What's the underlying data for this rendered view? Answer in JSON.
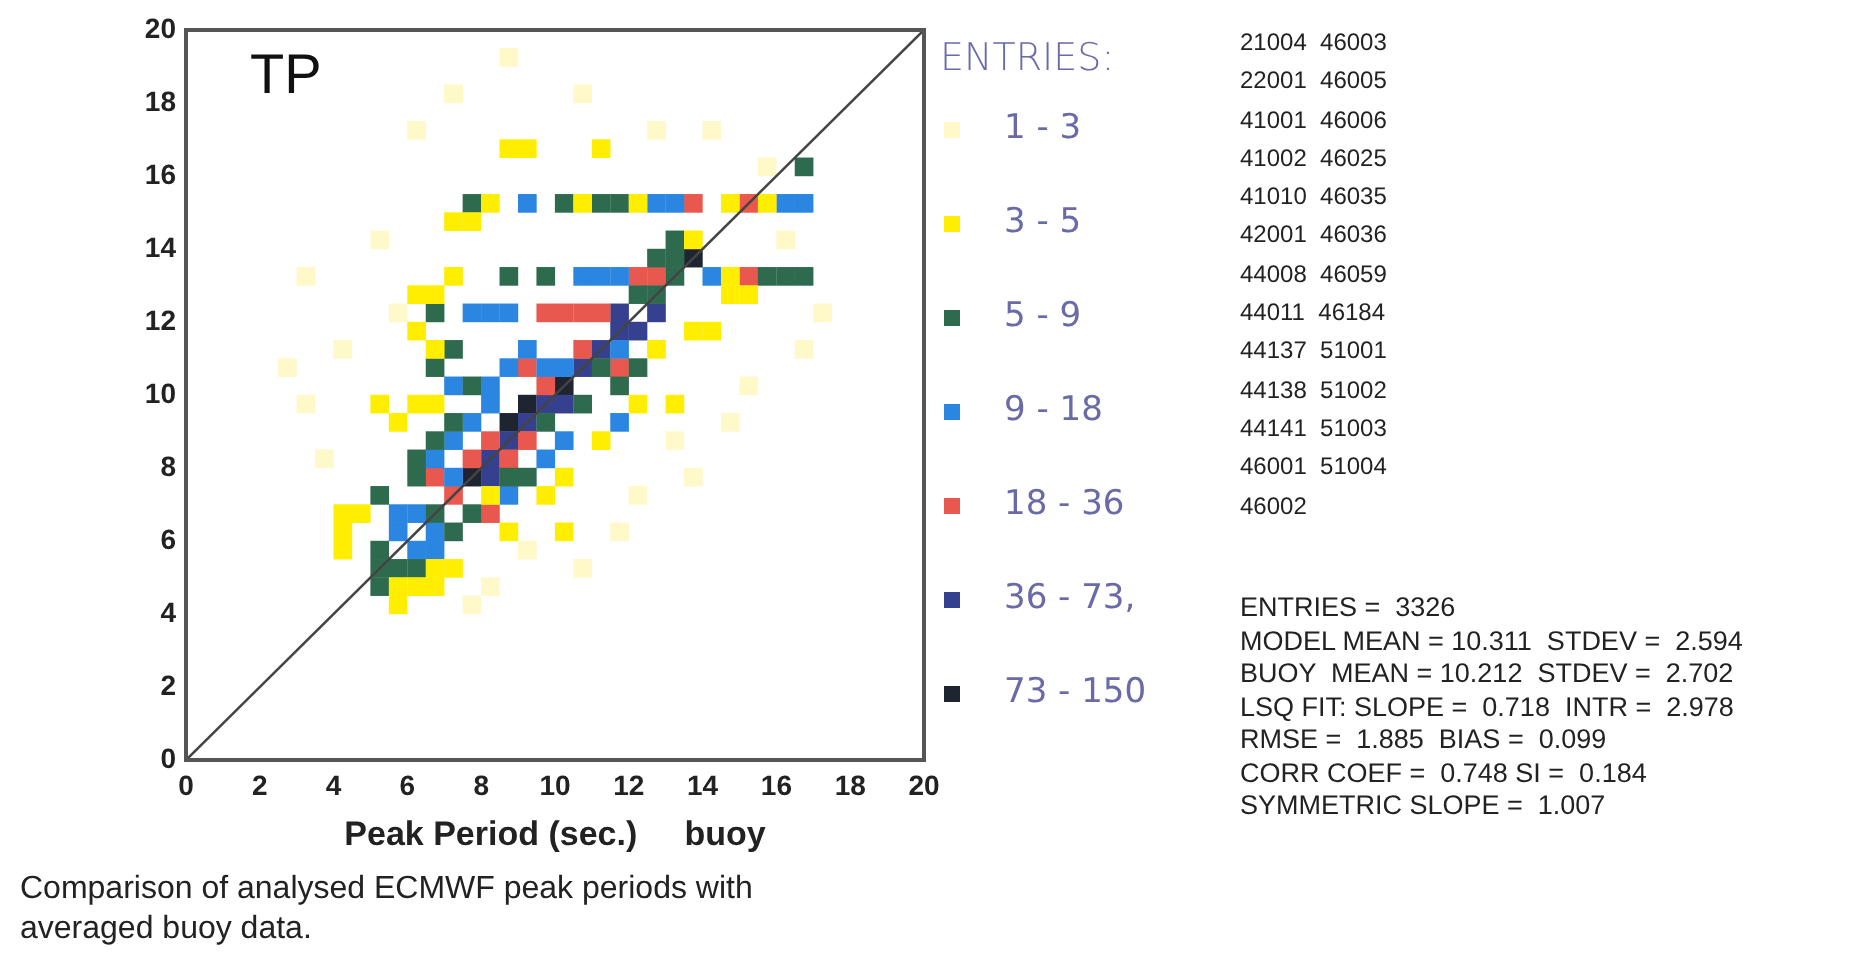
{
  "chart_data": {
    "type": "scatter",
    "title": "TP",
    "xlabel": "Peak Period (sec.)     buoy",
    "legend_title": "ENTRIES:",
    "legend": "right",
    "marker": "square",
    "grid": false,
    "xlim": [
      0,
      20
    ],
    "ylim": [
      0,
      20
    ],
    "xticks": [
      0,
      2,
      4,
      6,
      8,
      10,
      12,
      14,
      16,
      18,
      20
    ],
    "yticks": [
      0,
      2,
      4,
      6,
      8,
      10,
      12,
      14,
      16,
      18,
      20
    ],
    "series": [
      {
        "name": "1 - 3",
        "color": "#fff8c8",
        "x": [
          3.25,
          4.25,
          5.75,
          5.25,
          6.25,
          7.25,
          8.75,
          10.75,
          12.75,
          14.25,
          15.75,
          16.75,
          15.25,
          14.75,
          13.75,
          12.25,
          11.75,
          10.75,
          9.25,
          8.25,
          7.75,
          3.75,
          3.25,
          2.75,
          17.25,
          13.25,
          16.25
        ],
        "values": [
          13.25,
          11.25,
          12.25,
          14.25,
          17.25,
          18.25,
          19.25,
          18.25,
          17.25,
          17.25,
          16.25,
          11.25,
          10.25,
          9.25,
          7.75,
          7.25,
          6.25,
          5.25,
          5.75,
          4.75,
          4.25,
          8.25,
          9.75,
          10.75,
          12.25,
          8.75,
          14.25
        ]
      },
      {
        "name": "3 - 5",
        "color": "#ffee00",
        "x": [
          5.75,
          5.75,
          4.25,
          4.25,
          4.75,
          6.25,
          6.25,
          5.75,
          6.75,
          5.25,
          6.75,
          6.25,
          6.25,
          6.75,
          7.25,
          7.25,
          7.75,
          8.25,
          8.75,
          9.25,
          11.25,
          10.75,
          12.25,
          14.75,
          15.75,
          13.75,
          14.75,
          15.25,
          14.75,
          13.75,
          14.25,
          12.25,
          11.25,
          10.25,
          9.75,
          8.75,
          7.25,
          6.75,
          10.25,
          12.75,
          13.25,
          4.25,
          6.75,
          8.25
        ],
        "values": [
          4.25,
          4.75,
          6.25,
          6.75,
          6.75,
          4.75,
          9.75,
          9.25,
          9.75,
          9.75,
          11.25,
          11.75,
          12.75,
          12.75,
          13.25,
          14.75,
          14.75,
          15.25,
          16.75,
          16.75,
          16.75,
          15.25,
          15.25,
          15.25,
          15.25,
          14.25,
          13.25,
          12.75,
          12.75,
          11.75,
          11.75,
          9.75,
          8.75,
          7.75,
          7.25,
          6.25,
          5.25,
          4.75,
          6.25,
          11.25,
          9.75,
          5.75,
          5.25,
          7.25
        ]
      },
      {
        "name": "5 - 9",
        "color": "#2e6b4e",
        "x": [
          5.25,
          5.25,
          5.25,
          5.75,
          5.25,
          6.25,
          6.25,
          6.75,
          7.25,
          7.75,
          6.75,
          7.25,
          6.75,
          8.75,
          9.75,
          7.75,
          10.25,
          11.25,
          11.75,
          15.75,
          16.25,
          16.75,
          16.75,
          12.25,
          12.75,
          13.25,
          13.25,
          12.75,
          13.25,
          11.25,
          11.75,
          12.25,
          10.75,
          9.25,
          8.75,
          7.75,
          7.25,
          6.75,
          9.75,
          6.25
        ],
        "values": [
          4.75,
          5.25,
          5.75,
          5.25,
          7.25,
          7.75,
          8.25,
          8.75,
          9.25,
          10.25,
          10.75,
          11.25,
          12.25,
          13.25,
          13.25,
          15.25,
          15.25,
          15.25,
          15.25,
          13.25,
          13.25,
          13.25,
          16.25,
          12.75,
          12.75,
          13.25,
          13.75,
          13.75,
          14.25,
          10.75,
          10.25,
          10.75,
          9.75,
          7.75,
          7.75,
          6.75,
          6.25,
          6.75,
          9.25,
          5.25
        ]
      },
      {
        "name": "9 - 18",
        "color": "#2a86e0",
        "x": [
          5.75,
          6.25,
          6.25,
          6.75,
          5.75,
          6.75,
          7.25,
          7.75,
          8.25,
          8.75,
          9.25,
          7.25,
          7.75,
          8.25,
          8.75,
          10.75,
          11.25,
          11.75,
          14.25,
          8.25,
          9.75,
          10.25,
          11.75,
          11.75,
          10.25,
          9.75,
          8.75,
          9.25,
          12.75,
          16.25,
          16.75,
          13.25,
          7.25,
          6.75
        ],
        "values": [
          6.25,
          6.75,
          5.75,
          6.25,
          6.75,
          8.25,
          8.75,
          9.25,
          9.75,
          10.75,
          11.25,
          10.25,
          12.25,
          12.25,
          12.25,
          13.25,
          13.25,
          13.25,
          13.25,
          10.25,
          10.75,
          10.75,
          11.25,
          9.25,
          8.75,
          8.25,
          7.25,
          15.25,
          15.25,
          15.25,
          15.25,
          15.25,
          7.75,
          5.75
        ]
      },
      {
        "name": "18 - 36",
        "color": "#e8584e",
        "x": [
          7.25,
          6.75,
          7.75,
          8.25,
          8.75,
          9.25,
          9.75,
          9.25,
          10.75,
          9.75,
          10.25,
          10.75,
          11.25,
          12.25,
          12.75,
          13.75,
          15.25,
          15.25,
          8.25,
          11.75
        ],
        "values": [
          7.25,
          7.75,
          8.25,
          8.75,
          8.25,
          8.75,
          10.25,
          10.75,
          11.25,
          12.25,
          12.25,
          12.25,
          12.25,
          13.25,
          13.25,
          15.25,
          15.25,
          13.25,
          6.75,
          10.75
        ]
      },
      {
        "name": "36 - 73,",
        "color": "#35418e",
        "x": [
          8.25,
          8.75,
          9.75,
          10.75,
          11.25,
          11.75,
          12.25,
          9.25,
          10.25,
          8.25,
          12.75,
          11.75
        ],
        "values": [
          8.25,
          8.75,
          9.75,
          10.75,
          11.25,
          11.75,
          11.75,
          9.25,
          9.75,
          7.75,
          12.25,
          12.25
        ]
      },
      {
        "name": "73 - 150",
        "color": "#1e2430",
        "x": [
          7.75,
          9.25,
          10.25,
          13.75,
          8.75
        ],
        "values": [
          7.75,
          9.75,
          10.25,
          13.75,
          9.25
        ]
      },
      {
        "type": "line",
        "color": "#444444",
        "marker": "none",
        "x": [
          0,
          20
        ],
        "values": [
          0,
          20
        ]
      }
    ],
    "annotations": [
      "21004  46003",
      "22001  46005",
      "41001  46006",
      "41002  46025",
      "41010  46035",
      "42001  46036",
      "44008  46059",
      "44011  46184",
      "44137  51001",
      "44138  51002",
      "44141  51003",
      "46001  51004",
      "46002",
      "ENTRIES =  3326",
      "MODEL MEAN = 10.311  STDEV =  2.594",
      "BUOY  MEAN = 10.212  STDEV =  2.702",
      "LSQ FIT: SLOPE =  0.718  INTR =  2.978",
      "RMSE =  1.885  BIAS =  0.099",
      "CORR COEF =  0.748 SI =  0.184",
      "SYMMETRIC SLOPE =  1.007",
      "Comparison of analysed ECMWF peak periods with averaged buoy data."
    ]
  }
}
